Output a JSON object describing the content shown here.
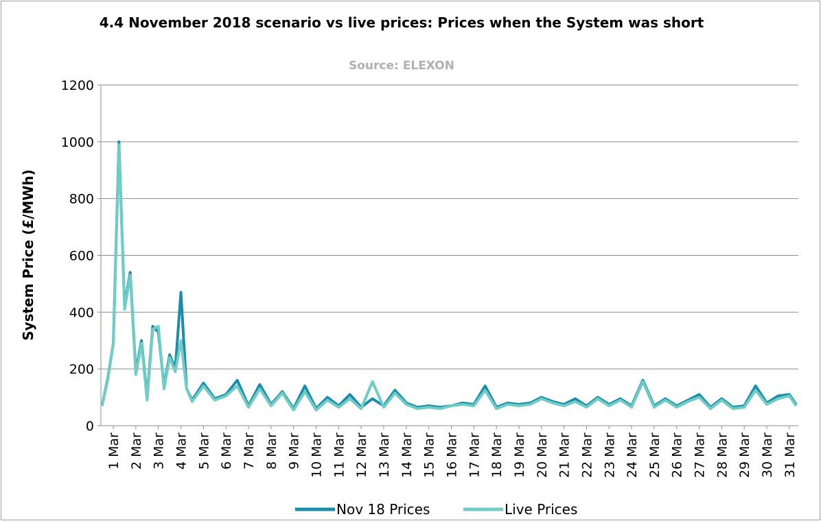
{
  "chart_data": {
    "type": "line",
    "title": "4.4 November 2018 scenario vs live prices: Prices when the System was short",
    "subtitle": "Source: ELEXON",
    "y_label": "System Price (£/MWh)",
    "xlim": [
      0.45,
      31.4
    ],
    "ylim": [
      0,
      1200
    ],
    "yticks": [
      0,
      200,
      400,
      600,
      800,
      1000,
      1200
    ],
    "xticks": [
      {
        "value": 1,
        "label": "1 Mar"
      },
      {
        "value": 2,
        "label": "2 Mar"
      },
      {
        "value": 3,
        "label": "3 Mar"
      },
      {
        "value": 4,
        "label": "4 Mar"
      },
      {
        "value": 5,
        "label": "5 Mar"
      },
      {
        "value": 6,
        "label": "6 Mar"
      },
      {
        "value": 7,
        "label": "7 Mar"
      },
      {
        "value": 8,
        "label": "8 Mar"
      },
      {
        "value": 9,
        "label": "9 Mar"
      },
      {
        "value": 10,
        "label": "10 Mar"
      },
      {
        "value": 11,
        "label": "11 Mar"
      },
      {
        "value": 12,
        "label": "12 Mar"
      },
      {
        "value": 13,
        "label": "13 Mar"
      },
      {
        "value": 14,
        "label": "14 Mar"
      },
      {
        "value": 15,
        "label": "15 Mar"
      },
      {
        "value": 16,
        "label": "16 Mar"
      },
      {
        "value": 17,
        "label": "17 Mar"
      },
      {
        "value": 18,
        "label": "18 Mar"
      },
      {
        "value": 19,
        "label": "19 Mar"
      },
      {
        "value": 20,
        "label": "20 Mar"
      },
      {
        "value": 21,
        "label": "21 Mar"
      },
      {
        "value": 22,
        "label": "22 Mar"
      },
      {
        "value": 23,
        "label": "23 Mar"
      },
      {
        "value": 24,
        "label": "24 Mar"
      },
      {
        "value": 25,
        "label": "25 Mar"
      },
      {
        "value": 26,
        "label": "26 Mar"
      },
      {
        "value": 27,
        "label": "27 Mar"
      },
      {
        "value": 28,
        "label": "28 Mar"
      },
      {
        "value": 29,
        "label": "29 Mar"
      },
      {
        "value": 30,
        "label": "30 Mar"
      },
      {
        "value": 31,
        "label": "31 Mar"
      }
    ],
    "grid": true,
    "x": [
      0.5,
      0.75,
      1.0,
      1.25,
      1.5,
      1.75,
      2.0,
      2.25,
      2.5,
      2.75,
      3.0,
      3.25,
      3.5,
      3.75,
      4.0,
      4.25,
      4.5,
      5.0,
      5.5,
      6.0,
      6.5,
      7.0,
      7.5,
      8.0,
      8.5,
      9.0,
      9.5,
      10.0,
      10.5,
      11.0,
      11.5,
      12.0,
      12.5,
      13.0,
      13.5,
      14.0,
      14.5,
      15.0,
      15.5,
      16.0,
      16.5,
      17.0,
      17.5,
      18.0,
      18.5,
      19.0,
      19.5,
      20.0,
      20.5,
      21.0,
      21.5,
      22.0,
      22.5,
      23.0,
      23.5,
      24.0,
      24.5,
      25.0,
      25.5,
      26.0,
      26.5,
      27.0,
      27.5,
      28.0,
      28.5,
      29.0,
      29.5,
      30.0,
      30.5,
      31.0,
      31.3
    ],
    "series": [
      {
        "name": "Nov 18 Prices",
        "color": "#1b8cab",
        "values": [
          70,
          165,
          290,
          1000,
          420,
          540,
          190,
          300,
          100,
          350,
          330,
          140,
          250,
          200,
          470,
          130,
          90,
          150,
          95,
          110,
          160,
          70,
          145,
          75,
          120,
          60,
          140,
          60,
          100,
          70,
          110,
          65,
          95,
          70,
          125,
          80,
          65,
          70,
          65,
          70,
          80,
          75,
          140,
          65,
          80,
          75,
          80,
          100,
          85,
          75,
          95,
          70,
          100,
          75,
          95,
          70,
          160,
          70,
          95,
          70,
          90,
          110,
          65,
          95,
          65,
          70,
          140,
          80,
          105,
          110,
          75
        ]
      },
      {
        "name": "Live Prices",
        "color": "#6fcdc6",
        "values": [
          70,
          160,
          290,
          990,
          410,
          530,
          180,
          290,
          90,
          340,
          350,
          130,
          240,
          190,
          300,
          130,
          85,
          140,
          90,
          105,
          140,
          65,
          130,
          70,
          115,
          55,
          120,
          55,
          90,
          65,
          95,
          60,
          155,
          65,
          115,
          75,
          60,
          65,
          60,
          70,
          75,
          70,
          125,
          60,
          75,
          70,
          75,
          95,
          80,
          70,
          85,
          65,
          95,
          70,
          90,
          65,
          155,
          65,
          90,
          65,
          85,
          100,
          60,
          90,
          60,
          65,
          125,
          75,
          95,
          105,
          70
        ]
      }
    ],
    "legend": "bottom"
  }
}
